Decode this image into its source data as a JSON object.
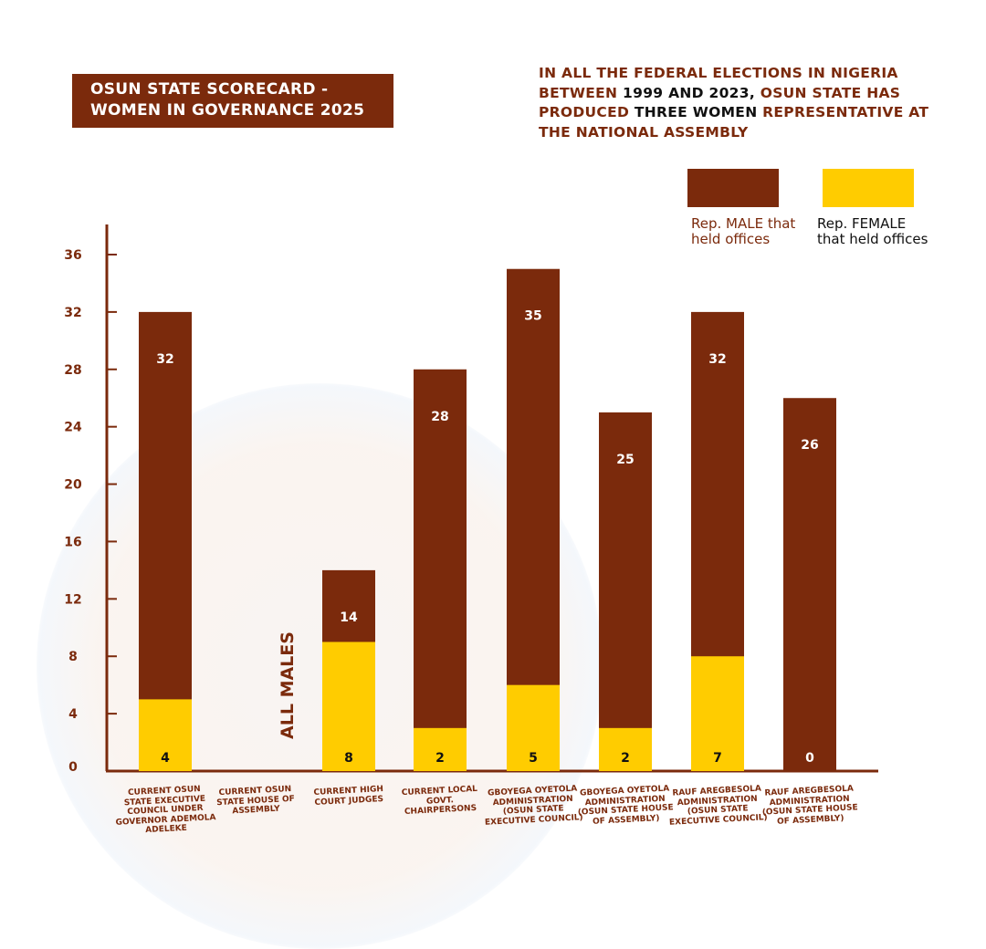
{
  "title_lines": [
    "OSUN STATE SCORECARD -",
    "WOMEN IN GOVERNANCE 2025"
  ],
  "subtitle": {
    "p1": "IN ALL THE FEDERAL ELECTIONS IN NIGERIA BETWEEN ",
    "p2": "1999 AND 2023,",
    "p3": " OSUN STATE HAS PRODUCED ",
    "p4": "THREE WOMEN",
    "p5": " REPRESENTATIVE AT THE NATIONAL ASSEMBLY"
  },
  "colors": {
    "male": "#7B2A0C",
    "female": "#FFCC00",
    "axis": "#7B2A0C"
  },
  "chart_data": {
    "type": "bar",
    "title": "OSUN STATE SCORECARD - WOMEN IN GOVERNANCE 2025",
    "categories": [
      "CURRENT OSUN STATE EXECUTIVE COUNCIL UNDER GOVERNOR ADEMOLA ADELEKE",
      "CURRENT OSUN STATE HOUSE OF ASSEMBLY",
      "CURRENT HIGH COURT JUDGES",
      "CURRENT LOCAL GOVT. CHAIRPERSONS",
      "GBOYEGA OYETOLA ADMINISTRATION (OSUN STATE EXECUTIVE COUNCIL)",
      "GBOYEGA OYETOLA ADMINISTRATION (OSUN STATE HOUSE OF ASSEMBLY)",
      "RAUF AREGBESOLA ADMINISTRATION (OSUN STATE EXECUTIVE COUNCIL)",
      "RAUF AREGBESOLA ADMINISTRATION (OSUN STATE HOUSE OF ASSEMBLY)"
    ],
    "series": [
      {
        "name": "Rep. MALE that held offices",
        "values": [
          32,
          null,
          14,
          28,
          35,
          25,
          32,
          26
        ]
      },
      {
        "name": "Rep. FEMALE that held offices",
        "values": [
          4,
          null,
          8,
          2,
          5,
          2,
          7,
          0
        ]
      }
    ],
    "annotations": [
      {
        "category_index": 1,
        "text": "ALL MALES"
      }
    ],
    "yticks": [
      0,
      4,
      8,
      12,
      16,
      20,
      24,
      28,
      32,
      36
    ],
    "ylim": [
      0,
      37
    ],
    "grid": false,
    "legend_placement": "top-right"
  }
}
